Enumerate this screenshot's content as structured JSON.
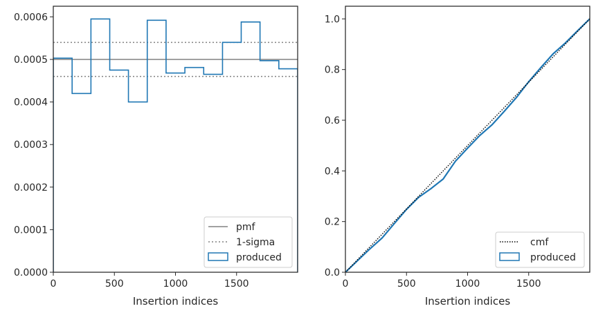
{
  "chart_data": [
    {
      "type": "histogram",
      "xlabel": "Insertion indices",
      "ylabel": "",
      "xlim": [
        0,
        2000
      ],
      "ylim": [
        0,
        0.000625
      ],
      "x_ticks": [
        0,
        500,
        1000,
        1500
      ],
      "y_ticks": [
        0,
        0.0001,
        0.0002,
        0.0003,
        0.0004,
        0.0005,
        0.0006
      ],
      "x_tick_labels": [
        "0",
        "500",
        "1000",
        "1500"
      ],
      "y_tick_labels": [
        "0.0000",
        "0.0001",
        "0.0002",
        "0.0003",
        "0.0004",
        "0.0005",
        "0.0006"
      ],
      "bin_edges": [
        0,
        154,
        308,
        462,
        615,
        769,
        923,
        1077,
        1231,
        1385,
        1538,
        1692,
        1846,
        2000
      ],
      "series": [
        {
          "name": "produced",
          "values": [
            0.000503,
            0.00042,
            0.000595,
            0.000475,
            0.0004,
            0.000592,
            0.000468,
            0.000481,
            0.000465,
            0.00054,
            0.000588,
            0.000497,
            0.000478
          ]
        }
      ],
      "reference_lines": [
        {
          "name": "pmf",
          "y": 0.0005,
          "style": "solid"
        },
        {
          "name": "1-sigma",
          "y": [
            0.00046,
            0.00054
          ],
          "style": "dotted"
        }
      ],
      "legend": {
        "position": "lower-right",
        "entries": [
          "pmf",
          "1-sigma",
          "produced"
        ]
      },
      "colors": {
        "produced": "#1f77b4",
        "pmf": "#808080",
        "sigma": "#808080"
      }
    },
    {
      "type": "line",
      "xlabel": "Insertion indices",
      "ylabel": "",
      "xlim": [
        0,
        2000
      ],
      "ylim": [
        0,
        1.05
      ],
      "x_ticks": [
        0,
        500,
        1000,
        1500
      ],
      "y_ticks": [
        0,
        0.2,
        0.4,
        0.6,
        0.8,
        1.0
      ],
      "x_tick_labels": [
        "0",
        "500",
        "1000",
        "1500"
      ],
      "y_tick_labels": [
        "0.0",
        "0.2",
        "0.4",
        "0.6",
        "0.8",
        "1.0"
      ],
      "series": [
        {
          "name": "cmf",
          "style": "dotted",
          "x": [
            0,
            2000
          ],
          "y": [
            0,
            1.0
          ]
        },
        {
          "name": "produced",
          "style": "solid",
          "x": [
            0,
            100,
            200,
            300,
            400,
            500,
            600,
            700,
            800,
            900,
            1000,
            1100,
            1200,
            1300,
            1400,
            1500,
            1600,
            1700,
            1800,
            1900,
            2000
          ],
          "y": [
            0,
            0.046,
            0.092,
            0.135,
            0.192,
            0.248,
            0.296,
            0.33,
            0.368,
            0.438,
            0.49,
            0.54,
            0.582,
            0.635,
            0.69,
            0.752,
            0.808,
            0.862,
            0.905,
            0.953,
            1.0
          ]
        }
      ],
      "legend": {
        "position": "lower-right",
        "entries": [
          "cmf",
          "produced"
        ]
      },
      "colors": {
        "produced": "#1f77b4",
        "cmf": "#000000"
      }
    }
  ]
}
